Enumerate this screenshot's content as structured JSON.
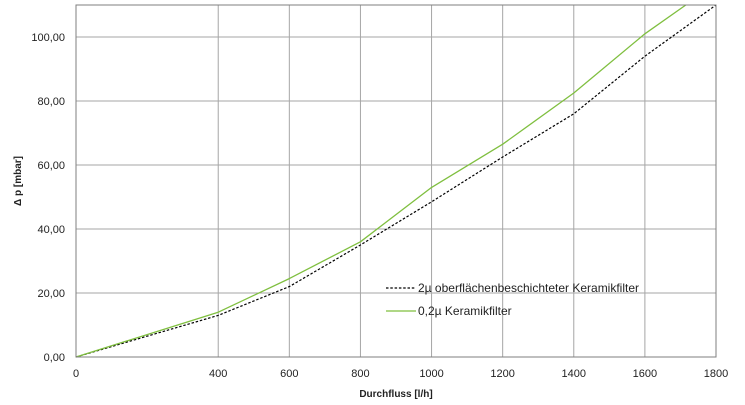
{
  "chart_data": {
    "type": "line",
    "title": "",
    "xlabel": "Durchfluss [l/h]",
    "ylabel": "Δ p [mbar]",
    "xlim": [
      0,
      1800
    ],
    "ylim": [
      0,
      110
    ],
    "x_ticks": [
      0,
      400,
      600,
      800,
      1000,
      1200,
      1400,
      1600,
      1800
    ],
    "y_ticks": [
      0,
      20,
      40,
      60,
      80,
      100
    ],
    "x_tick_labels": [
      "0",
      "400",
      "600",
      "800",
      "1000",
      "1200",
      "1400",
      "1600",
      "1800"
    ],
    "y_tick_labels": [
      "0,00",
      "20,00",
      "40,00",
      "60,00",
      "80,00",
      "100,00"
    ],
    "grid": true,
    "legend_position": "bottom-right",
    "series": [
      {
        "name": "2µ oberflächenbeschichteter Keramikfilter",
        "color": "#000000",
        "dash": "dotted",
        "x": [
          0,
          200,
          400,
          600,
          800,
          1000,
          1200,
          1400,
          1600,
          1800
        ],
        "y": [
          0,
          6.5,
          13,
          22,
          35,
          48.5,
          62.5,
          76,
          94,
          110
        ]
      },
      {
        "name": "0,2µ Keramikfilter",
        "color": "#7fbf3f",
        "dash": "solid",
        "x": [
          0,
          200,
          400,
          600,
          800,
          1000,
          1200,
          1400,
          1600,
          1715
        ],
        "y": [
          0,
          7,
          14,
          24.5,
          36,
          53,
          66.5,
          82.5,
          101,
          110
        ]
      }
    ]
  }
}
